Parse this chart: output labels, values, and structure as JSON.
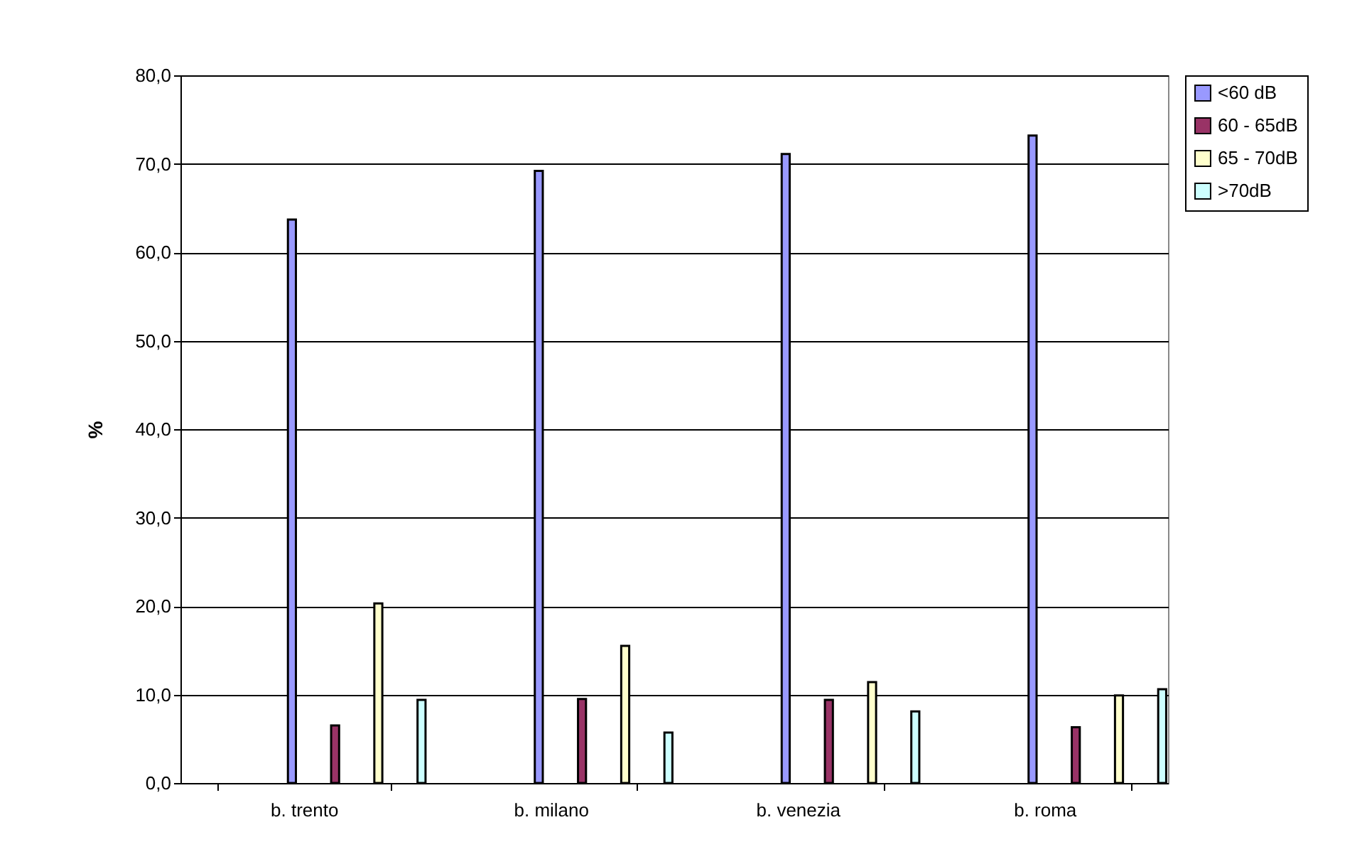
{
  "chart_data": {
    "type": "bar",
    "ylabel": "%",
    "categories": [
      "b. trento",
      "b. milano",
      "b. venezia",
      "b. roma"
    ],
    "series": [
      {
        "name": "<60 dB",
        "color": "#9999ff",
        "values": [
          63.7,
          69.2,
          71.1,
          73.2
        ]
      },
      {
        "name": "60 - 65dB",
        "color": "#993366",
        "values": [
          6.5,
          9.5,
          9.4,
          6.3
        ]
      },
      {
        "name": "65 - 70dB",
        "color": "#ffffcc",
        "values": [
          20.3,
          15.5,
          11.4,
          9.9
        ]
      },
      {
        "name": ">70dB",
        "color": "#ccffff",
        "values": [
          9.4,
          5.7,
          8.1,
          10.6
        ]
      }
    ],
    "ylim": [
      0,
      80
    ],
    "yticks": [
      {
        "value": 0,
        "label": "0,0"
      },
      {
        "value": 10,
        "label": "10,0"
      },
      {
        "value": 20,
        "label": "20,0"
      },
      {
        "value": 30,
        "label": "30,0"
      },
      {
        "value": 40,
        "label": "40,0"
      },
      {
        "value": 50,
        "label": "50,0"
      },
      {
        "value": 60,
        "label": "60,0"
      },
      {
        "value": 70,
        "label": "70,0"
      },
      {
        "value": 80,
        "label": "80,0"
      }
    ],
    "grid": "y",
    "legend": "right"
  }
}
